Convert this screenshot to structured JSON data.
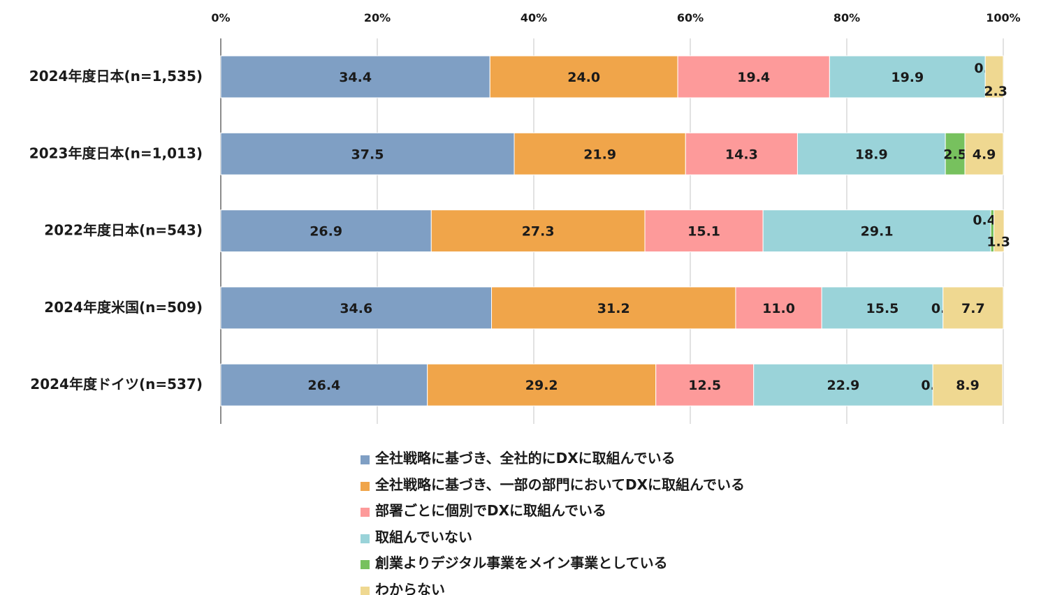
{
  "chart_data": {
    "type": "bar",
    "orientation": "horizontal",
    "stacked": true,
    "xlim": [
      0,
      100
    ],
    "x_ticks": [
      "0%",
      "20%",
      "40%",
      "60%",
      "80%",
      "100%"
    ],
    "grid": true,
    "legend_position": "bottom",
    "categories": [
      "2024年度日本(n=1,535)",
      "2023年度日本(n=1,013)",
      "2022年度日本(n=543)",
      "2024年度米国(n=509)",
      "2024年度ドイツ(n=537)"
    ],
    "series": [
      {
        "name": "全社戦略に基づき、全社的にDXに取組んでいる",
        "color": "#7f9fc4",
        "values": [
          34.4,
          37.5,
          26.9,
          34.6,
          26.4
        ]
      },
      {
        "name": "全社戦略に基づき、一部の部門においてDXに取組んでいる",
        "color": "#f0a54a",
        "values": [
          24.0,
          21.9,
          27.3,
          31.2,
          29.2
        ]
      },
      {
        "name": "部署ごとに個別でDXに取組んでいる",
        "color": "#fd9a9a",
        "values": [
          19.4,
          14.3,
          15.1,
          11.0,
          12.5
        ]
      },
      {
        "name": "取組んでいない",
        "color": "#9ad3d9",
        "values": [
          19.9,
          18.9,
          29.1,
          15.5,
          22.9
        ]
      },
      {
        "name": "創業よりデジタル事業をメイン事業としている",
        "color": "#77c15e",
        "values": [
          0.0,
          2.5,
          0.4,
          0.0,
          0.0
        ]
      },
      {
        "name": "わからない",
        "color": "#efd891",
        "values": [
          2.3,
          4.9,
          1.3,
          7.7,
          8.9
        ]
      }
    ]
  }
}
